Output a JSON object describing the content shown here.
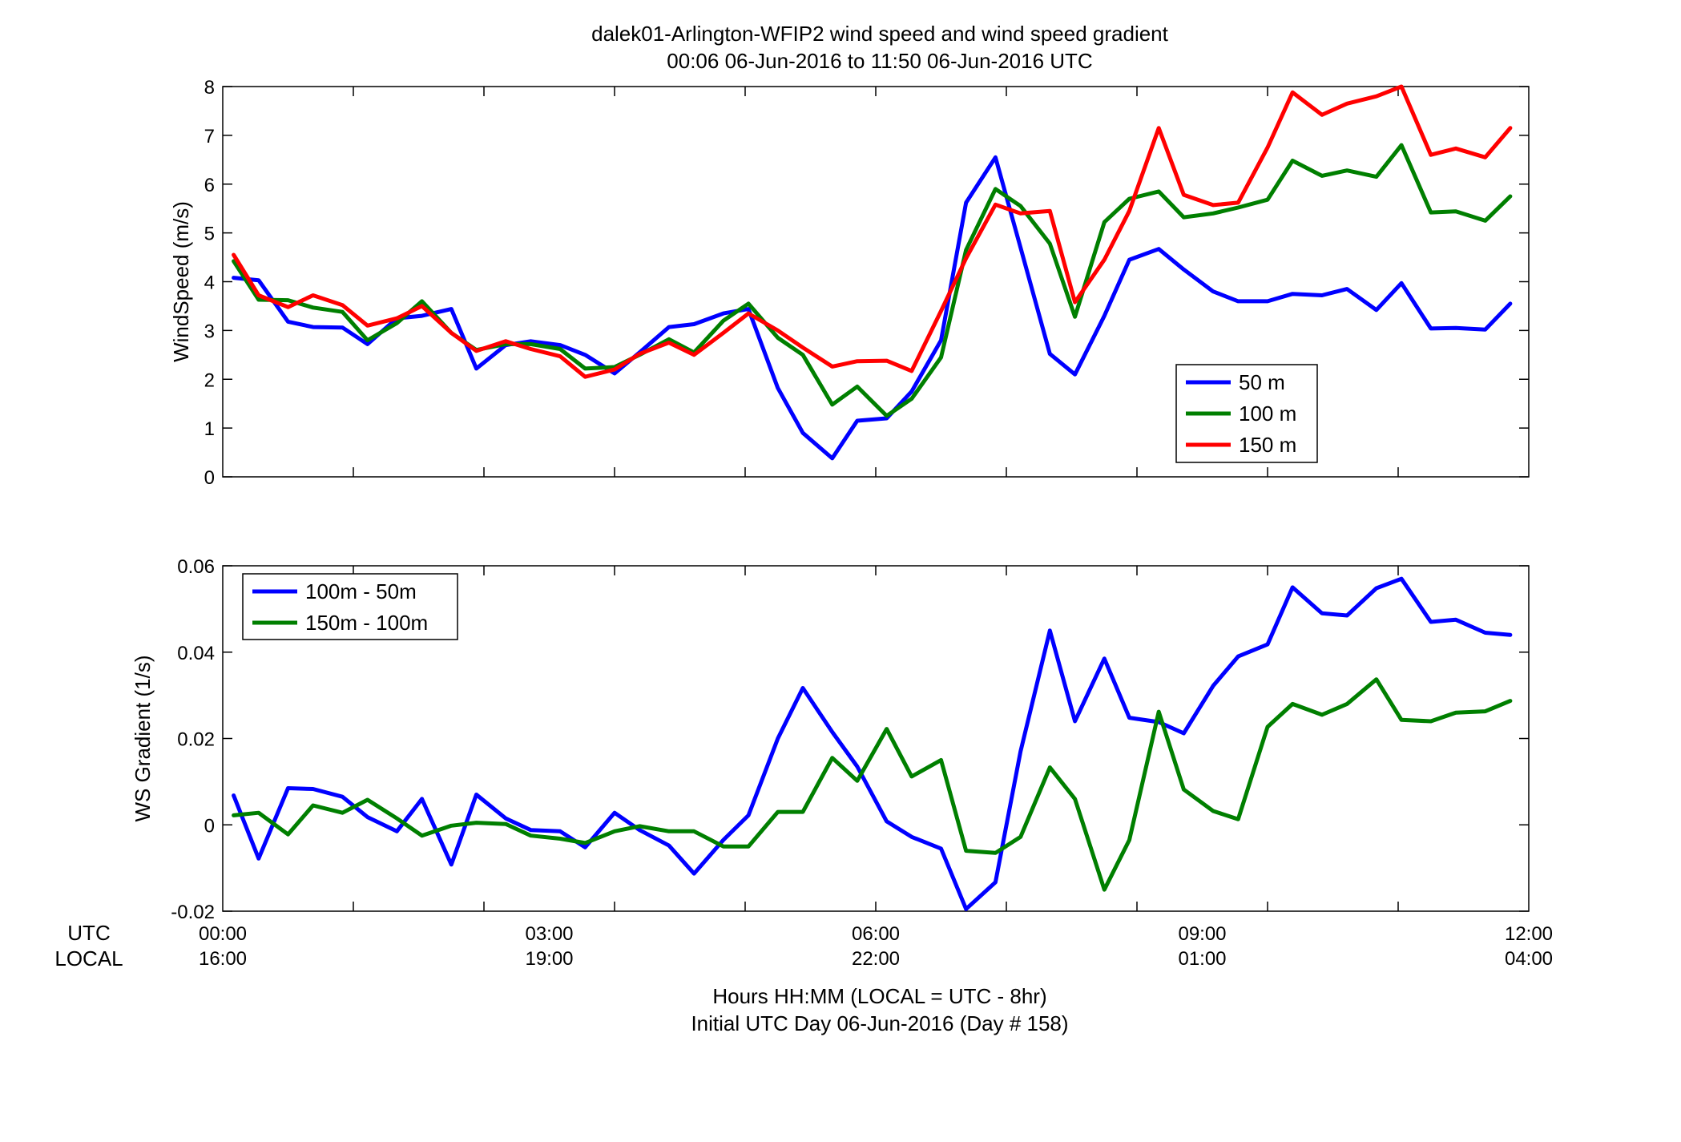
{
  "title": {
    "line1": "dalek01-Arlington-WFIP2  wind speed and wind speed gradient",
    "line2": "00:06 06-Jun-2016 to 11:50 06-Jun-2016  UTC"
  },
  "xaxis": {
    "row1_label": "UTC",
    "row2_label": "LOCAL",
    "utc_ticks": [
      "00:00",
      "03:00",
      "06:00",
      "09:00",
      "12:00"
    ],
    "local_ticks": [
      "16:00",
      "19:00",
      "22:00",
      "01:00",
      "04:00"
    ],
    "xlabel_line1": "Hours HH:MM  (LOCAL = UTC - 8hr)",
    "xlabel_line2": "Initial UTC Day 06-Jun-2016 (Day # 158)"
  },
  "chart_data": [
    {
      "type": "line",
      "ylabel": "WindSpeed (m/s)",
      "xlim": [
        0,
        12
      ],
      "ylim": [
        0,
        8
      ],
      "yticks": [
        0,
        1,
        2,
        3,
        4,
        5,
        6,
        7,
        8
      ],
      "xminor_step": 1.2,
      "legend_position": "lower-right",
      "x_unit": "UTC hours",
      "x": [
        0.1,
        0.33,
        0.6,
        0.83,
        1.1,
        1.33,
        1.6,
        1.83,
        2.1,
        2.33,
        2.6,
        2.83,
        3.1,
        3.33,
        3.6,
        3.83,
        4.1,
        4.33,
        4.6,
        4.83,
        5.1,
        5.33,
        5.6,
        5.83,
        6.1,
        6.33,
        6.6,
        6.83,
        7.1,
        7.33,
        7.6,
        7.83,
        8.1,
        8.33,
        8.6,
        8.83,
        9.1,
        9.33,
        9.6,
        9.83,
        10.1,
        10.33,
        10.6,
        10.83,
        11.1,
        11.33,
        11.6,
        11.83
      ],
      "series": [
        {
          "name": "50 m",
          "color": "#0000ff",
          "values": [
            4.08,
            4.03,
            3.18,
            3.07,
            3.06,
            2.72,
            3.25,
            3.3,
            3.44,
            2.22,
            2.7,
            2.78,
            2.7,
            2.5,
            2.12,
            2.55,
            3.07,
            3.13,
            3.35,
            3.44,
            1.82,
            0.9,
            0.38,
            1.15,
            1.2,
            1.75,
            2.8,
            5.62,
            6.55,
            4.7,
            2.52,
            2.1,
            3.3,
            4.45,
            4.67,
            4.25,
            3.8,
            3.6,
            3.6,
            3.75,
            3.72,
            3.85,
            3.42,
            3.97,
            3.04,
            3.05,
            3.02,
            3.55
          ]
        },
        {
          "name": "100 m",
          "color": "#007f00",
          "values": [
            4.42,
            3.63,
            3.62,
            3.47,
            3.38,
            2.8,
            3.15,
            3.6,
            2.95,
            2.6,
            2.72,
            2.72,
            2.62,
            2.22,
            2.25,
            2.5,
            2.82,
            2.55,
            3.2,
            3.55,
            2.85,
            2.5,
            1.48,
            1.85,
            1.25,
            1.6,
            2.45,
            4.65,
            5.9,
            5.55,
            4.78,
            3.28,
            5.22,
            5.7,
            5.85,
            5.32,
            5.4,
            5.52,
            5.68,
            6.48,
            6.17,
            6.28,
            6.15,
            6.8,
            5.42,
            5.44,
            5.25,
            5.75
          ]
        },
        {
          "name": "150 m",
          "color": "#ff0000",
          "values": [
            4.55,
            3.72,
            3.48,
            3.72,
            3.52,
            3.1,
            3.25,
            3.5,
            2.95,
            2.58,
            2.78,
            2.62,
            2.47,
            2.05,
            2.2,
            2.52,
            2.75,
            2.5,
            2.95,
            3.35,
            3.0,
            2.65,
            2.26,
            2.37,
            2.38,
            2.17,
            3.4,
            4.48,
            5.58,
            5.4,
            5.45,
            3.58,
            4.45,
            5.45,
            7.15,
            5.78,
            5.57,
            5.62,
            6.75,
            7.88,
            7.42,
            7.65,
            7.8,
            8.0,
            6.6,
            6.73,
            6.55,
            7.15
          ]
        }
      ]
    },
    {
      "type": "line",
      "ylabel": "WS Gradient (1/s)",
      "xlim": [
        0,
        12
      ],
      "ylim": [
        -0.02,
        0.06
      ],
      "yticks": [
        -0.02,
        0,
        0.02,
        0.04,
        0.06
      ],
      "xminor_step": 1.2,
      "legend_position": "upper-left",
      "x_unit": "UTC hours",
      "x": [
        0.1,
        0.33,
        0.6,
        0.83,
        1.1,
        1.33,
        1.6,
        1.83,
        2.1,
        2.33,
        2.6,
        2.83,
        3.1,
        3.33,
        3.6,
        3.83,
        4.1,
        4.33,
        4.6,
        4.83,
        5.1,
        5.33,
        5.6,
        5.83,
        6.1,
        6.33,
        6.6,
        6.83,
        7.1,
        7.33,
        7.6,
        7.83,
        8.1,
        8.33,
        8.6,
        8.83,
        9.1,
        9.33,
        9.6,
        9.83,
        10.1,
        10.33,
        10.6,
        10.83,
        11.1,
        11.33,
        11.6,
        11.83
      ],
      "series": [
        {
          "name": "100m - 50m",
          "color": "#0000ff",
          "values": [
            0.0068,
            -0.0078,
            0.0085,
            0.0083,
            0.0065,
            0.0018,
            -0.0015,
            0.006,
            -0.0092,
            0.007,
            0.0015,
            -0.0012,
            -0.0015,
            -0.0052,
            0.0028,
            -0.0012,
            -0.0048,
            -0.0113,
            -0.0035,
            0.0022,
            0.02,
            0.0317,
            0.0215,
            0.0135,
            0.0008,
            -0.0028,
            -0.0055,
            -0.0195,
            -0.0133,
            0.017,
            0.045,
            0.024,
            0.0385,
            0.0248,
            0.0238,
            0.0212,
            0.0322,
            0.039,
            0.0418,
            0.055,
            0.049,
            0.0485,
            0.0548,
            0.057,
            0.047,
            0.0475,
            0.0445,
            0.044
          ]
        },
        {
          "name": "150m - 100m",
          "color": "#007f00",
          "values": [
            0.0022,
            0.0028,
            -0.0022,
            0.0045,
            0.0028,
            0.0058,
            0.0015,
            -0.0025,
            -0.0002,
            0.0005,
            0.0002,
            -0.0025,
            -0.0032,
            -0.0042,
            -0.0015,
            -0.0003,
            -0.0015,
            -0.0015,
            -0.005,
            -0.005,
            0.003,
            0.003,
            0.0155,
            0.0102,
            0.0222,
            0.0112,
            0.015,
            -0.006,
            -0.0065,
            -0.0028,
            0.0133,
            0.006,
            -0.015,
            -0.0035,
            0.0262,
            0.0082,
            0.0032,
            0.0013,
            0.0227,
            0.028,
            0.0255,
            0.028,
            0.0337,
            0.0243,
            0.024,
            0.026,
            0.0263,
            0.0287
          ]
        }
      ]
    }
  ]
}
